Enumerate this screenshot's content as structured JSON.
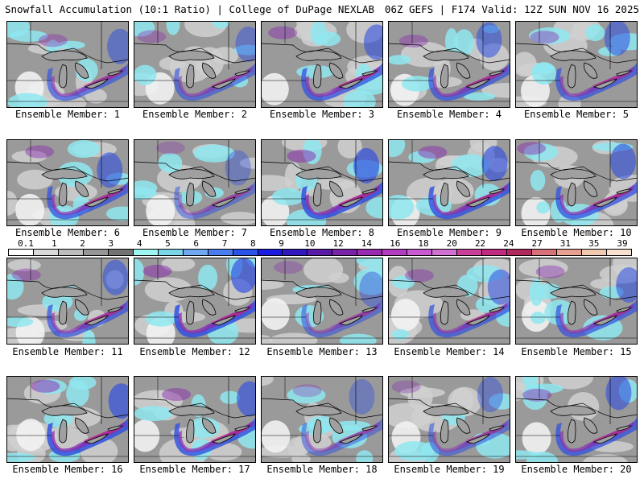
{
  "header": {
    "title": "Snowfall Accumulation (10:1 Ratio) | College of DuPage NEXLAB",
    "run_info": "06Z GEFS | F174 Valid: 12Z SUN NOV 16 2025"
  },
  "member_label_prefix": "Ensemble Member:",
  "members": [
    {
      "number": "1",
      "label": "Ensemble Member: 1",
      "intensity": 0.65
    },
    {
      "number": "2",
      "label": "Ensemble Member: 2",
      "intensity": 0.6
    },
    {
      "number": "3",
      "label": "Ensemble Member: 3",
      "intensity": 0.75
    },
    {
      "number": "4",
      "label": "Ensemble Member: 4",
      "intensity": 0.7
    },
    {
      "number": "5",
      "label": "Ensemble Member: 5",
      "intensity": 0.7
    },
    {
      "number": "6",
      "label": "Ensemble Member: 6",
      "intensity": 0.75
    },
    {
      "number": "7",
      "label": "Ensemble Member: 7",
      "intensity": 0.5
    },
    {
      "number": "8",
      "label": "Ensemble Member: 8",
      "intensity": 0.85
    },
    {
      "number": "9",
      "label": "Ensemble Member: 9",
      "intensity": 0.8
    },
    {
      "number": "10",
      "label": "Ensemble Member: 10",
      "intensity": 0.75
    },
    {
      "number": "11",
      "label": "Ensemble Member: 11",
      "intensity": 0.7
    },
    {
      "number": "12",
      "label": "Ensemble Member: 12",
      "intensity": 0.85
    },
    {
      "number": "13",
      "label": "Ensemble Member: 13",
      "intensity": 0.55
    },
    {
      "number": "14",
      "label": "Ensemble Member: 14",
      "intensity": 0.7
    },
    {
      "number": "15",
      "label": "Ensemble Member: 15",
      "intensity": 0.7
    },
    {
      "number": "16",
      "label": "Ensemble Member: 16",
      "intensity": 0.85
    },
    {
      "number": "17",
      "label": "Ensemble Member: 17",
      "intensity": 0.8
    },
    {
      "number": "18",
      "label": "Ensemble Member: 18",
      "intensity": 0.5
    },
    {
      "number": "19",
      "label": "Ensemble Member: 19",
      "intensity": 0.55
    },
    {
      "number": "20",
      "label": "Ensemble Member: 20",
      "intensity": 0.75
    }
  ],
  "colorbar": {
    "labels": [
      "0.1",
      "1",
      "2",
      "3",
      "4",
      "5",
      "6",
      "7",
      "8",
      "9",
      "10",
      "12",
      "14",
      "16",
      "18",
      "20",
      "22",
      "24",
      "27",
      "31",
      "35",
      "39"
    ],
    "colors": [
      "#ffffff",
      "#d9d9d9",
      "#bdbdbd",
      "#969696",
      "#737373",
      "#9ff5f0",
      "#7ad6e8",
      "#6fa8f0",
      "#4a7df0",
      "#2a52e8",
      "#1a1ae0",
      "#3018c0",
      "#5a1aa8",
      "#7a22a8",
      "#9a2ab0",
      "#b23cc0",
      "#c85ad0",
      "#d070d0",
      "#c8409a",
      "#c02a80",
      "#b02a60",
      "#d8707a",
      "#e8a090",
      "#f0c8b0",
      "#f8e0d0"
    ]
  },
  "colors": {
    "background": "#ffffff",
    "border": "#000000",
    "land_gray": "#9a9a9a",
    "light_gray": "#d0d0d0",
    "cyan": "#8fe8f0",
    "blue": "#3050e0",
    "purple": "#8a2ab0",
    "magenta": "#c02a80",
    "lake": "#a0a0a0"
  }
}
